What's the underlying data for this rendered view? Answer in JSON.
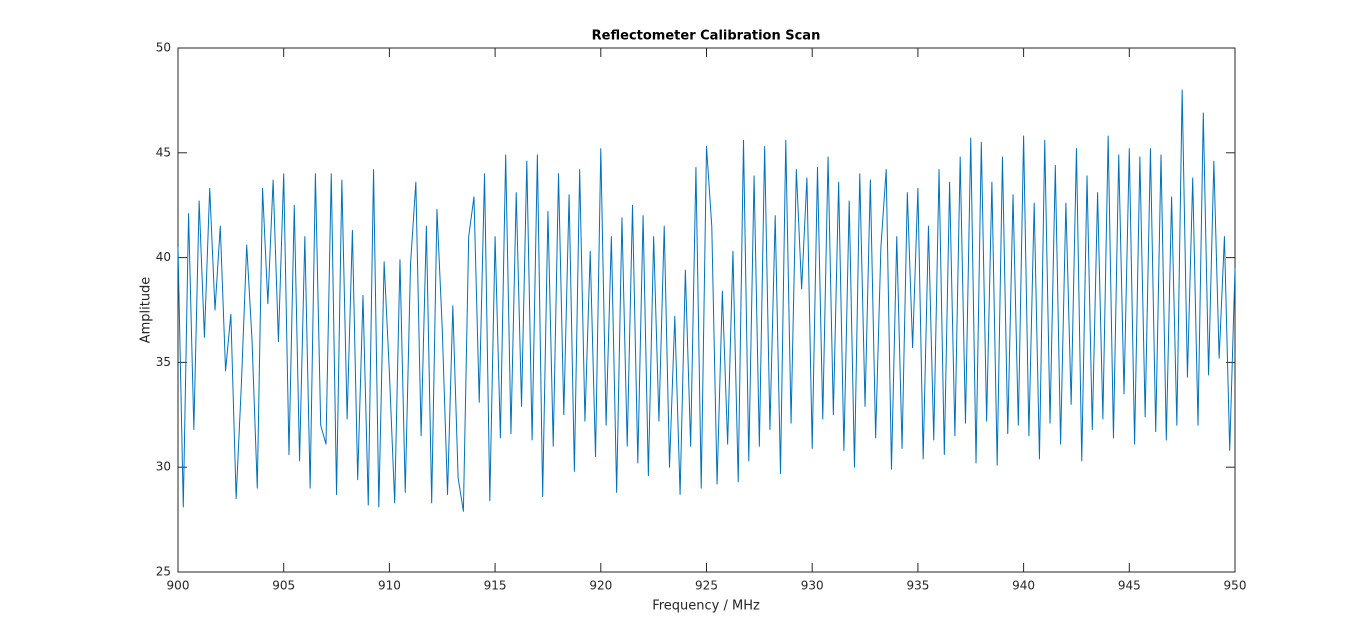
{
  "chart_data": {
    "type": "line",
    "title": "Reflectometer Calibration Scan",
    "x_label": "Frequency / MHz",
    "y_label": "Amplitude",
    "xlim": [
      900,
      950
    ],
    "ylim": [
      25,
      50
    ],
    "xticks": [
      900,
      905,
      910,
      915,
      920,
      925,
      930,
      935,
      940,
      945,
      950
    ],
    "yticks": [
      25,
      30,
      35,
      40,
      45,
      50
    ],
    "grid": false,
    "series": [
      {
        "name": "Amplitude",
        "color": "#0072bd",
        "x": [
          900,
          900.25,
          900.5,
          900.75,
          901,
          901.25,
          901.5,
          901.75,
          902,
          902.25,
          902.5,
          902.75,
          903,
          903.25,
          903.5,
          903.75,
          904,
          904.25,
          904.5,
          904.75,
          905,
          905.25,
          905.5,
          905.75,
          906,
          906.25,
          906.5,
          906.75,
          907,
          907.25,
          907.5,
          907.75,
          908,
          908.25,
          908.5,
          908.75,
          909,
          909.25,
          909.5,
          909.75,
          910,
          910.25,
          910.5,
          910.75,
          911,
          911.25,
          911.5,
          911.75,
          912,
          912.25,
          912.5,
          912.75,
          913,
          913.25,
          913.5,
          913.75,
          914,
          914.25,
          914.5,
          914.75,
          915,
          915.25,
          915.5,
          915.75,
          916,
          916.25,
          916.5,
          916.75,
          917,
          917.25,
          917.5,
          917.75,
          918,
          918.25,
          918.5,
          918.75,
          919,
          919.25,
          919.5,
          919.75,
          920,
          920.25,
          920.5,
          920.75,
          921,
          921.25,
          921.5,
          921.75,
          922,
          922.25,
          922.5,
          922.75,
          923,
          923.25,
          923.5,
          923.75,
          924,
          924.25,
          924.5,
          924.75,
          925,
          925.25,
          925.5,
          925.75,
          926,
          926.25,
          926.5,
          926.75,
          927,
          927.25,
          927.5,
          927.75,
          928,
          928.25,
          928.5,
          928.75,
          929,
          929.25,
          929.5,
          929.75,
          930,
          930.25,
          930.5,
          930.75,
          931,
          931.25,
          931.5,
          931.75,
          932,
          932.25,
          932.5,
          932.75,
          933,
          933.25,
          933.5,
          933.75,
          934,
          934.25,
          934.5,
          934.75,
          935,
          935.25,
          935.5,
          935.75,
          936,
          936.25,
          936.5,
          936.75,
          937,
          937.25,
          937.5,
          937.75,
          938,
          938.25,
          938.5,
          938.75,
          939,
          939.25,
          939.5,
          939.75,
          940,
          940.25,
          940.5,
          940.75,
          941,
          941.25,
          941.5,
          941.75,
          942,
          942.25,
          942.5,
          942.75,
          943,
          943.25,
          943.5,
          943.75,
          944,
          944.25,
          944.5,
          944.75,
          945,
          945.25,
          945.5,
          945.75,
          946,
          946.25,
          946.5,
          946.75,
          947,
          947.25,
          947.5,
          947.75,
          948,
          948.25,
          948.5,
          948.75,
          949,
          949.25,
          949.5,
          949.75,
          950
        ],
        "values": [
          40.5,
          28.1,
          42.1,
          31.8,
          42.7,
          36.2,
          43.3,
          37.5,
          41.5,
          34.6,
          37.3,
          28.5,
          34.0,
          40.6,
          36.1,
          29.0,
          43.3,
          37.8,
          43.7,
          36.0,
          44.0,
          30.6,
          42.5,
          30.3,
          41.0,
          29.0,
          44.0,
          32.0,
          31.1,
          44.0,
          28.7,
          43.7,
          32.3,
          41.3,
          29.4,
          38.2,
          28.2,
          44.2,
          28.1,
          39.8,
          34.5,
          28.3,
          39.9,
          28.8,
          39.7,
          43.6,
          31.5,
          41.5,
          28.3,
          42.3,
          36.6,
          28.7,
          37.7,
          29.5,
          27.9,
          41.0,
          42.9,
          33.1,
          44.0,
          28.4,
          41.0,
          31.4,
          44.9,
          31.6,
          43.1,
          32.9,
          44.6,
          31.3,
          44.9,
          28.6,
          42.2,
          31.0,
          44.0,
          32.5,
          43.0,
          29.8,
          44.2,
          32.2,
          40.3,
          30.5,
          45.2,
          32.0,
          41.0,
          28.8,
          41.9,
          31.0,
          42.5,
          30.2,
          42.0,
          29.6,
          41.0,
          32.2,
          41.5,
          30.0,
          37.2,
          28.7,
          39.4,
          31.0,
          44.3,
          29.0,
          45.3,
          41.5,
          29.2,
          38.4,
          31.1,
          40.3,
          29.3,
          45.6,
          30.3,
          43.9,
          31.0,
          45.3,
          31.8,
          42.0,
          29.7,
          45.6,
          32.1,
          44.2,
          38.5,
          43.8,
          30.9,
          44.3,
          32.3,
          44.8,
          32.5,
          43.6,
          30.8,
          42.7,
          30.0,
          44.0,
          32.9,
          43.7,
          31.4,
          40.5,
          44.2,
          29.9,
          41.0,
          30.9,
          43.1,
          35.7,
          43.3,
          30.4,
          41.5,
          31.3,
          44.2,
          30.6,
          43.6,
          31.5,
          44.8,
          32.1,
          45.7,
          30.2,
          45.5,
          32.2,
          43.6,
          30.1,
          44.8,
          31.6,
          43.0,
          32.0,
          45.8,
          31.5,
          42.6,
          30.4,
          45.6,
          32.1,
          44.4,
          31.1,
          42.6,
          33.0,
          45.2,
          30.3,
          43.9,
          31.8,
          43.1,
          32.3,
          45.8,
          31.4,
          44.9,
          33.5,
          45.2,
          31.1,
          44.8,
          32.4,
          45.2,
          31.7,
          44.9,
          31.3,
          42.9,
          32.0,
          48.0,
          34.3,
          43.8,
          32.0,
          46.9,
          34.4,
          44.6,
          35.2,
          41.0,
          30.8,
          39.5
        ]
      }
    ]
  }
}
